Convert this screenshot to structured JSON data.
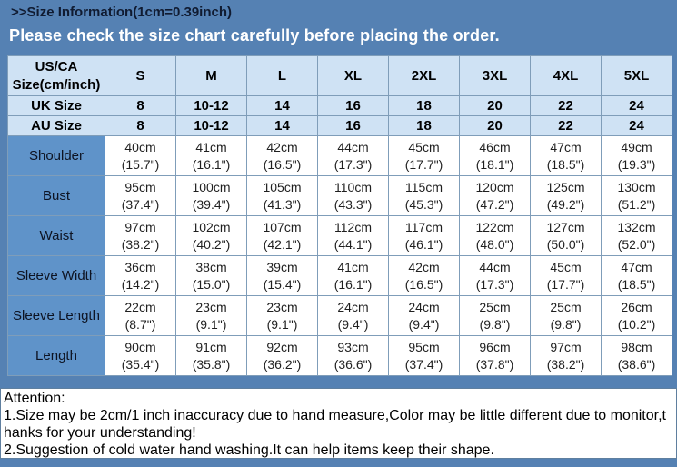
{
  "page": {
    "title": ">>Size Information(1cm=0.39inch)",
    "banner": "Please check the size chart carefully before placing the order."
  },
  "colors": {
    "backdrop_blue": "#5581b3",
    "label_cell_blue": "#5f93c9",
    "header_light_blue": "#cfe2f4",
    "table_border": "#7f9db9",
    "banner_text": "#ffffff",
    "title_text": "#101b31"
  },
  "size_chart": {
    "corner_line1": "US/CA",
    "corner_line2": "Size(cm/inch)",
    "sizes": [
      "S",
      "M",
      "L",
      "XL",
      "2XL",
      "3XL",
      "4XL",
      "5XL"
    ],
    "uk_label": "UK Size",
    "uk_values": [
      "8",
      "10-12",
      "14",
      "16",
      "18",
      "20",
      "22",
      "24"
    ],
    "au_label": "AU Size",
    "au_values": [
      "8",
      "10-12",
      "14",
      "16",
      "18",
      "20",
      "22",
      "24"
    ],
    "rows": [
      {
        "label": "Shoulder",
        "cm": [
          "40cm",
          "41cm",
          "42cm",
          "44cm",
          "45cm",
          "46cm",
          "47cm",
          "49cm"
        ],
        "inch": [
          "(15.7\")",
          "(16.1\")",
          "(16.5\")",
          "(17.3\")",
          "(17.7\")",
          "(18.1\")",
          "(18.5\")",
          "(19.3\")"
        ]
      },
      {
        "label": "Bust",
        "cm": [
          "95cm",
          "100cm",
          "105cm",
          "110cm",
          "115cm",
          "120cm",
          "125cm",
          "130cm"
        ],
        "inch": [
          "(37.4\")",
          "(39.4\")",
          "(41.3\")",
          "(43.3\")",
          "(45.3\")",
          "(47.2\")",
          "(49.2\")",
          "(51.2\")"
        ]
      },
      {
        "label": "Waist",
        "cm": [
          "97cm",
          "102cm",
          "107cm",
          "112cm",
          "117cm",
          "122cm",
          "127cm",
          "132cm"
        ],
        "inch": [
          "(38.2\")",
          "(40.2\")",
          "(42.1\")",
          "(44.1\")",
          "(46.1\")",
          "(48.0\")",
          "(50.0\")",
          "(52.0\")"
        ]
      },
      {
        "label": "Sleeve Width",
        "cm": [
          "36cm",
          "38cm",
          "39cm",
          "41cm",
          "42cm",
          "44cm",
          "45cm",
          "47cm"
        ],
        "inch": [
          "(14.2\")",
          "(15.0\")",
          "(15.4\")",
          "(16.1\")",
          "(16.5\")",
          "(17.3\")",
          "(17.7\")",
          "(18.5\")"
        ]
      },
      {
        "label": "Sleeve Length",
        "cm": [
          "22cm",
          "23cm",
          "23cm",
          "24cm",
          "24cm",
          "25cm",
          "25cm",
          "26cm"
        ],
        "inch": [
          "(8.7\")",
          "(9.1\")",
          "(9.1\")",
          "(9.4\")",
          "(9.4\")",
          "(9.8\")",
          "(9.8\")",
          "(10.2\")"
        ]
      },
      {
        "label": "Length",
        "cm": [
          "90cm",
          "91cm",
          "92cm",
          "93cm",
          "95cm",
          "96cm",
          "97cm",
          "98cm"
        ],
        "inch": [
          "(35.4\")",
          "(35.8\")",
          "(36.2\")",
          "(36.6\")",
          "(37.4\")",
          "(37.8\")",
          "(38.2\")",
          "(38.6\")"
        ]
      }
    ]
  },
  "attention": {
    "lines": [
      "Attention:",
      "1.Size may be 2cm/1 inch inaccuracy due to hand measure,Color may be little different due to monitor,t",
      "hanks for your understanding!",
      "2.Suggestion of cold water hand washing.It can help items keep their shape."
    ]
  }
}
